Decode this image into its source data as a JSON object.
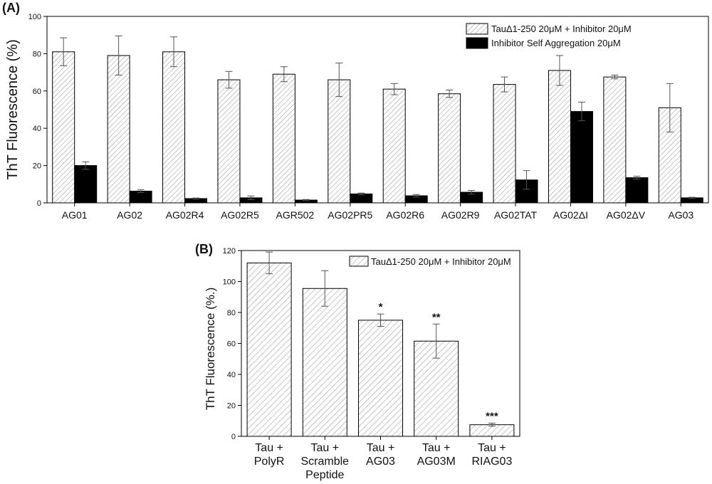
{
  "colors": {
    "hatch": "#9a9a9a",
    "solid": "#000000",
    "axis": "#000000",
    "error": "#555555"
  },
  "chart_data": [
    {
      "panel_label": "(A)",
      "type": "bar",
      "ylabel": "ThT Fluorescence (%)",
      "ylim": [
        0,
        100
      ],
      "yticks": [
        0,
        20,
        40,
        60,
        80,
        100
      ],
      "legend_position": "top-right",
      "categories": [
        "AG01",
        "AG02",
        "AG02R4",
        "AG02R5",
        "AGR502",
        "AG02PR5",
        "AG02R6",
        "AG02R9",
        "AG02TAT",
        "AG02ΔI",
        "AG02ΔV",
        "AG03"
      ],
      "series": [
        {
          "name": "TauΔ1-250 20μM + Inhibitor 20μM",
          "style": "hatched",
          "values": [
            81,
            79,
            81,
            66,
            69,
            66,
            61,
            58.5,
            63.5,
            71,
            67.5,
            51
          ],
          "errors": [
            7.5,
            10.5,
            8,
            4.5,
            4,
            9,
            3,
            2,
            4,
            8,
            1,
            13
          ]
        },
        {
          "name": "Inhibitor Self Aggregation 20μM",
          "style": "solid",
          "values": [
            20,
            6.3,
            2.3,
            2.7,
            1.5,
            4.8,
            3.8,
            5.7,
            12.3,
            49,
            13.5,
            2.7
          ],
          "errors": [
            2,
            0.8,
            0.3,
            1,
            0.3,
            0.5,
            0.7,
            1,
            5,
            5,
            0.8,
            0.3
          ]
        }
      ]
    },
    {
      "panel_label": "(B)",
      "type": "bar",
      "ylabel": "ThT Fluorescence (%.)",
      "ylim": [
        0,
        120
      ],
      "yticks": [
        0,
        20,
        40,
        60,
        80,
        100,
        120
      ],
      "legend_position": "top-right",
      "categories": [
        [
          "Tau +",
          "PolyR"
        ],
        [
          "Tau +",
          "Scramble",
          "Peptide"
        ],
        [
          "Tau +",
          "AG03"
        ],
        [
          "Tau +",
          "AG03M"
        ],
        [
          "Tau +",
          "RIAG03"
        ]
      ],
      "series": [
        {
          "name": "TauΔ1-250 20μM  +  Inhibitor 20μM",
          "style": "hatched",
          "values": [
            112,
            95.5,
            75,
            61.5,
            7.5
          ],
          "errors": [
            7,
            11.5,
            4,
            11,
            1
          ]
        }
      ],
      "significance": [
        "",
        "",
        "*",
        "**",
        "***"
      ]
    }
  ]
}
